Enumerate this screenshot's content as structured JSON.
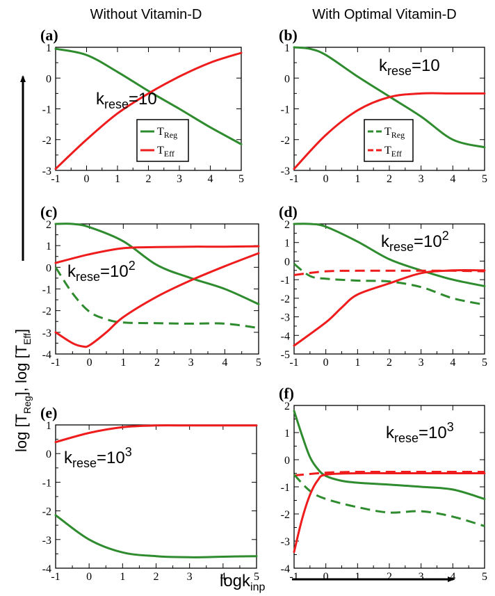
{
  "column_titles": [
    "Without Vitamin-D",
    "With Optimal Vitamin-D"
  ],
  "y_axis_label": "log [T_Reg], log [T_Eff]",
  "x_axis_label": "logk_inp",
  "colors": {
    "T_Reg": "#2e8b2e",
    "T_Eff": "#ee1c1c"
  },
  "chart_data": [
    {
      "type": "line",
      "panel": "(a)",
      "annotation": "k_rese=10^1",
      "xlim": [
        -1,
        5
      ],
      "ylim": [
        -3,
        1
      ],
      "xticks": [
        "-1",
        "0",
        "1",
        "2",
        "3",
        "4",
        "5"
      ],
      "yticks": [
        "1",
        "0",
        "-1",
        "-2",
        "-3"
      ],
      "legend": {
        "entries": [
          "T_Reg",
          "T_Eff"
        ],
        "placement": "bottom-center"
      },
      "series": [
        {
          "name": "T_Reg",
          "color": "green",
          "style": "solid",
          "x": [
            -1,
            0,
            1,
            2,
            3,
            4,
            5
          ],
          "y": [
            0.95,
            0.75,
            0.2,
            -0.42,
            -1.0,
            -1.6,
            -2.15
          ]
        },
        {
          "name": "T_Eff",
          "color": "red",
          "style": "solid",
          "x": [
            -1,
            0,
            1,
            2,
            3,
            4,
            5
          ],
          "y": [
            -2.95,
            -2.0,
            -1.15,
            -0.5,
            0.05,
            0.5,
            0.82
          ]
        }
      ]
    },
    {
      "type": "line",
      "panel": "(b)",
      "annotation": "k_rese=10^1",
      "xlim": [
        -1,
        5
      ],
      "ylim": [
        -3,
        1
      ],
      "xticks": [
        "-1",
        "0",
        "1",
        "2",
        "3",
        "4",
        "5"
      ],
      "yticks": [
        "1",
        "0",
        "-1",
        "-2",
        "-3"
      ],
      "legend": {
        "entries": [
          "T_Reg",
          "T_Eff"
        ],
        "placement": "bottom-center",
        "dashed": true
      },
      "series": [
        {
          "name": "T_Reg",
          "color": "green",
          "style": "solid",
          "x": [
            -1,
            -0.5,
            0,
            1,
            2,
            3,
            4,
            5
          ],
          "y": [
            1.0,
            0.95,
            0.75,
            0.05,
            -0.6,
            -1.25,
            -2.0,
            -2.25
          ]
        },
        {
          "name": "T_Eff",
          "color": "red",
          "style": "solid",
          "x": [
            -1,
            0,
            1,
            2,
            3,
            4,
            5
          ],
          "y": [
            -2.95,
            -1.85,
            -1.05,
            -0.62,
            -0.5,
            -0.5,
            -0.5
          ]
        }
      ]
    },
    {
      "type": "line",
      "panel": "(c)",
      "annotation": "k_rese=10^2",
      "xlim": [
        -1,
        5
      ],
      "ylim": [
        -4,
        2
      ],
      "xticks": [
        "-1",
        "0",
        "1",
        "2",
        "3",
        "4",
        "5"
      ],
      "yticks": [
        "2",
        "1",
        "0",
        "-1",
        "-2",
        "-3",
        "-4"
      ],
      "series": [
        {
          "name": "T_Reg",
          "color": "green",
          "style": "solid",
          "x": [
            -1,
            -0.5,
            0,
            1,
            2,
            3,
            4,
            5
          ],
          "y": [
            2.0,
            2.0,
            1.85,
            1.2,
            0.1,
            -0.5,
            -1.0,
            -1.7
          ]
        },
        {
          "name": "T_Eff",
          "color": "red",
          "style": "solid",
          "x": [
            -1,
            0,
            1,
            2,
            3,
            4,
            5
          ],
          "y": [
            0.2,
            0.6,
            0.88,
            0.93,
            0.95,
            0.95,
            0.97
          ]
        },
        {
          "name": "T_Reg",
          "color": "green",
          "style": "dashed",
          "x": [
            -1,
            -0.5,
            0,
            0.5,
            1,
            2,
            3,
            4,
            5
          ],
          "y": [
            0.0,
            -1.2,
            -2.05,
            -2.4,
            -2.55,
            -2.58,
            -2.6,
            -2.6,
            -2.8
          ]
        },
        {
          "name": "T_Eff",
          "color": "red",
          "style": "solid",
          "x": [
            -1,
            -0.5,
            -0.2,
            0,
            0.5,
            1,
            2,
            3,
            4,
            5
          ],
          "y": [
            -3.0,
            -3.5,
            -3.65,
            -3.6,
            -3.0,
            -2.3,
            -1.35,
            -0.6,
            0.05,
            0.65
          ]
        }
      ]
    },
    {
      "type": "line",
      "panel": "(d)",
      "annotation": "k_rese=10^2",
      "xlim": [
        -1,
        5
      ],
      "ylim": [
        -5,
        2
      ],
      "xticks": [
        "-1",
        "0",
        "1",
        "2",
        "3",
        "4",
        "5"
      ],
      "yticks": [
        "2",
        "1",
        "0",
        "-1",
        "-2",
        "-3",
        "-4",
        "-5"
      ],
      "series": [
        {
          "name": "T_Reg",
          "color": "green",
          "style": "solid",
          "x": [
            -1,
            -0.5,
            0,
            1,
            2,
            3,
            4,
            5
          ],
          "y": [
            2.0,
            2.0,
            1.85,
            1.05,
            0.1,
            -0.5,
            -1.0,
            -1.35
          ]
        },
        {
          "name": "T_Eff",
          "color": "red",
          "style": "dashed",
          "x": [
            -1,
            0,
            1,
            2,
            3,
            4,
            5
          ],
          "y": [
            -0.75,
            -0.55,
            -0.52,
            -0.52,
            -0.52,
            -0.52,
            -0.55
          ]
        },
        {
          "name": "T_Reg",
          "color": "green",
          "style": "dashed",
          "x": [
            -1,
            -0.5,
            0,
            1,
            2,
            3,
            4,
            5
          ],
          "y": [
            -0.15,
            -0.8,
            -0.95,
            -1.05,
            -1.1,
            -1.4,
            -2.0,
            -2.35
          ]
        },
        {
          "name": "T_Eff",
          "color": "red",
          "style": "solid",
          "x": [
            -1,
            0,
            0.5,
            1,
            2,
            3,
            4,
            5
          ],
          "y": [
            -4.55,
            -3.3,
            -2.5,
            -1.8,
            -1.2,
            -0.65,
            -0.5,
            -0.5
          ]
        }
      ]
    },
    {
      "type": "line",
      "panel": "(e)",
      "annotation": "k_rese=10^3",
      "xlim": [
        -1,
        5
      ],
      "ylim": [
        -4,
        1
      ],
      "xticks": [
        "-1",
        "0",
        "1",
        "2",
        "3",
        "4",
        "5"
      ],
      "yticks": [
        "1",
        "0",
        "-1",
        "-2",
        "-3",
        "-4"
      ],
      "series": [
        {
          "name": "T_Eff",
          "color": "red",
          "style": "solid",
          "x": [
            -1,
            0,
            1,
            2,
            3,
            4,
            5
          ],
          "y": [
            0.4,
            0.72,
            0.92,
            0.98,
            0.98,
            0.98,
            0.98
          ]
        },
        {
          "name": "T_Reg",
          "color": "green",
          "style": "solid",
          "x": [
            -1,
            0,
            1,
            2,
            3,
            4,
            5
          ],
          "y": [
            -2.15,
            -3.0,
            -3.45,
            -3.58,
            -3.62,
            -3.6,
            -3.58
          ]
        }
      ]
    },
    {
      "type": "line",
      "panel": "(f)",
      "annotation": "k_rese=10^3",
      "xlim": [
        -1,
        5
      ],
      "ylim": [
        -4,
        2
      ],
      "xticks": [
        "-1",
        "0",
        "1",
        "2",
        "3",
        "4",
        "5"
      ],
      "yticks": [
        "2",
        "1",
        "0",
        "-1",
        "-2",
        "-3",
        "-4"
      ],
      "series": [
        {
          "name": "T_Reg",
          "color": "green",
          "style": "solid",
          "x": [
            -1,
            -0.75,
            -0.5,
            -0.25,
            0,
            0.5,
            1,
            2,
            3,
            4,
            5
          ],
          "y": [
            1.8,
            0.9,
            0.1,
            -0.35,
            -0.6,
            -0.78,
            -0.85,
            -0.92,
            -1.0,
            -1.1,
            -1.45
          ]
        },
        {
          "name": "T_Eff",
          "color": "red",
          "style": "dashed",
          "x": [
            -1,
            0,
            1,
            2,
            3,
            4,
            5
          ],
          "y": [
            -0.58,
            -0.48,
            -0.45,
            -0.45,
            -0.45,
            -0.45,
            -0.45
          ]
        },
        {
          "name": "T_Reg",
          "color": "green",
          "style": "dashed",
          "x": [
            -1,
            -0.5,
            0,
            1,
            2,
            3,
            4,
            5
          ],
          "y": [
            -0.55,
            -1.15,
            -1.45,
            -1.75,
            -1.95,
            -1.9,
            -2.1,
            -2.45
          ]
        },
        {
          "name": "T_Eff",
          "color": "red",
          "style": "solid",
          "x": [
            -1,
            -0.75,
            -0.5,
            -0.25,
            0,
            1,
            2,
            3,
            4,
            5
          ],
          "y": [
            -3.4,
            -2.2,
            -1.3,
            -0.75,
            -0.55,
            -0.5,
            -0.5,
            -0.5,
            -0.5,
            -0.5
          ]
        }
      ]
    }
  ]
}
